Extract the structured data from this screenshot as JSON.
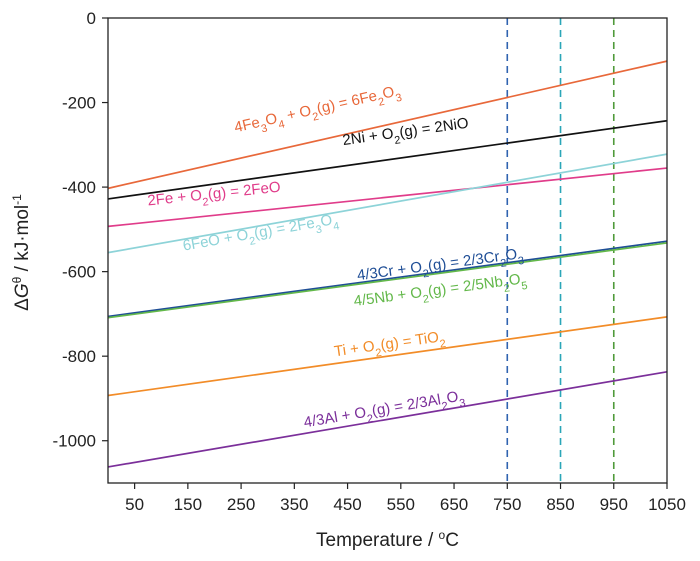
{
  "chart_data": {
    "type": "line",
    "xlabel": {
      "main": "Temperature / ",
      "sup": "o",
      "rest": "C"
    },
    "ylabel": {
      "delta": "Δ",
      "G": "G",
      "sup": "θ",
      "rest": " / kJ·mol",
      "sup2": "-1"
    },
    "xlim": [
      0,
      1050
    ],
    "ylim": [
      -1100,
      0
    ],
    "xticks": [
      50,
      150,
      250,
      350,
      450,
      550,
      650,
      750,
      850,
      950,
      1050
    ],
    "yticks": [
      0,
      -200,
      -400,
      -600,
      -800,
      -1000
    ],
    "grid": false,
    "vlines": [
      {
        "x": 750,
        "color": "#2f63b0"
      },
      {
        "x": 850,
        "color": "#2aa6b8"
      },
      {
        "x": 950,
        "color": "#4f9a3a"
      }
    ],
    "series": [
      {
        "name": "4Fe3O4 + O2(g) = 6Fe2O3",
        "color": "#e8683a",
        "x": [
          0,
          1050
        ],
        "y": [
          -403,
          -102
        ],
        "label": [
          {
            "t": "4Fe"
          },
          {
            "t": "3",
            "sub": true
          },
          {
            "t": "O"
          },
          {
            "t": "4",
            "sub": true
          },
          {
            "t": " + O"
          },
          {
            "t": "2",
            "sub": true
          },
          {
            "t": "(g) = 6Fe"
          },
          {
            "t": "2",
            "sub": true
          },
          {
            "t": "O"
          },
          {
            "t": "3",
            "sub": true
          }
        ]
      },
      {
        "name": "2Ni + O2(g) = 2NiO",
        "color": "#111111",
        "x": [
          0,
          1050
        ],
        "y": [
          -428,
          -243
        ],
        "label": [
          {
            "t": "2Ni + O"
          },
          {
            "t": "2",
            "sub": true
          },
          {
            "t": "(g) = 2NiO"
          }
        ]
      },
      {
        "name": "2Fe + O2(g) = 2FeO",
        "color": "#e03c8a",
        "x": [
          0,
          1050
        ],
        "y": [
          -493,
          -355
        ],
        "label": [
          {
            "t": "2Fe + O"
          },
          {
            "t": "2",
            "sub": true
          },
          {
            "t": "(g) = 2FeO"
          }
        ]
      },
      {
        "name": "6FeO + O2(g) = 2Fe3O4",
        "color": "#8dd3d8",
        "x": [
          0,
          1050
        ],
        "y": [
          -555,
          -322
        ],
        "label": [
          {
            "t": "6FeO + O"
          },
          {
            "t": "2",
            "sub": true
          },
          {
            "t": "(g) = 2Fe"
          },
          {
            "t": "3",
            "sub": true
          },
          {
            "t": "O"
          },
          {
            "t": "4",
            "sub": true
          }
        ]
      },
      {
        "name": "4/3Cr + O2(g) = 2/3Cr2O3",
        "color": "#1f4e96",
        "x": [
          0,
          1050
        ],
        "y": [
          -706,
          -528
        ],
        "label": [
          {
            "t": "4/3Cr + O"
          },
          {
            "t": "2",
            "sub": true
          },
          {
            "t": "(g) = 2/3Cr"
          },
          {
            "t": "2",
            "sub": true
          },
          {
            "t": "O"
          },
          {
            "t": "3",
            "sub": true
          }
        ]
      },
      {
        "name": "4/5Nb + O2(g) = 2/5Nb2O5",
        "color": "#63b84a",
        "x": [
          0,
          1050
        ],
        "y": [
          -709,
          -532
        ],
        "label": [
          {
            "t": "4/5Nb + O"
          },
          {
            "t": "2",
            "sub": true
          },
          {
            "t": "(g) = 2/5Nb"
          },
          {
            "t": "2",
            "sub": true
          },
          {
            "t": "O"
          },
          {
            "t": "5",
            "sub": true
          }
        ]
      },
      {
        "name": "Ti + O2(g) = TiO2",
        "color": "#f28c28",
        "x": [
          0,
          1050
        ],
        "y": [
          -893,
          -707
        ],
        "label": [
          {
            "t": "Ti + O"
          },
          {
            "t": "2",
            "sub": true
          },
          {
            "t": "(g) = TiO"
          },
          {
            "t": "2",
            "sub": true
          }
        ]
      },
      {
        "name": "4/3Al + O2(g) = 2/3Al2O3",
        "color": "#7b2f9a",
        "x": [
          0,
          1050
        ],
        "y": [
          -1062,
          -837
        ],
        "label": [
          {
            "t": "4/3Al + O"
          },
          {
            "t": "2",
            "sub": true
          },
          {
            "t": "(g) = 2/3Al"
          },
          {
            "t": "2",
            "sub": true
          },
          {
            "t": "O"
          },
          {
            "t": "3",
            "sub": true
          }
        ]
      }
    ]
  }
}
